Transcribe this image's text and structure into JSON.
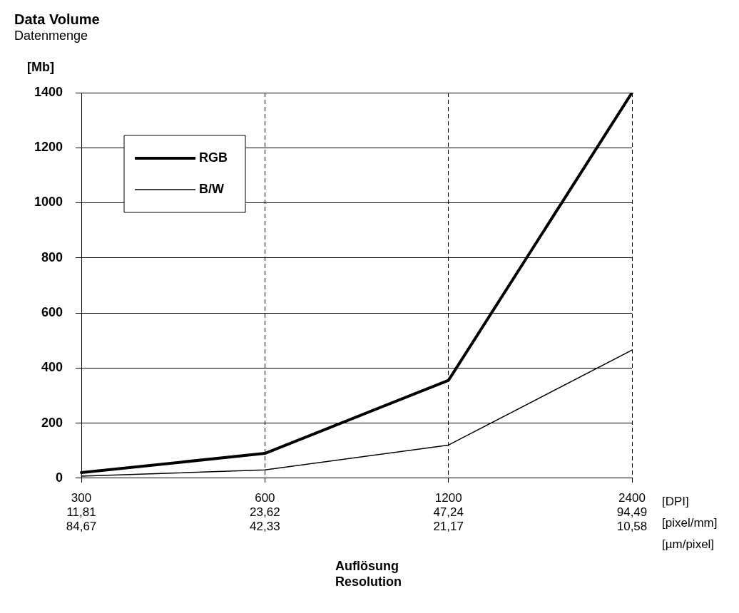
{
  "chart_data": {
    "type": "line",
    "title": "Data Volume",
    "subtitle": "Datenmenge",
    "ylabel": "[Mb]",
    "xlabel": "Auflösung\nResolution",
    "categories": [
      "300\n11,81\n84,67",
      "600\n23,62\n42,33",
      "1200\n47,24\n21,17",
      "2400\n94,49\n10,58"
    ],
    "series": [
      {
        "name": "RGB",
        "color": "#000000",
        "values": [
          20,
          90,
          355,
          1400
        ]
      },
      {
        "name": "B/W",
        "color": "#000000",
        "values": [
          7,
          30,
          120,
          465
        ]
      }
    ],
    "annotations": [
      "[DPI]",
      "[pixel/mm]",
      "[µm/pixel]"
    ],
    "ylim": [
      0,
      1400
    ],
    "yticks": [
      0,
      200,
      400,
      600,
      800,
      1000,
      1200,
      1400
    ],
    "grid": true,
    "legend": "top left",
    "marker": "none",
    "line_style": "solid"
  }
}
